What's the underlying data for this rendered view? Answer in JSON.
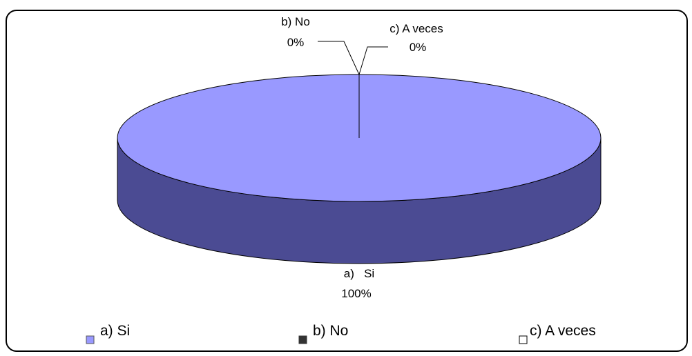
{
  "chart_data": {
    "type": "pie",
    "style": "3d",
    "categories": [
      "a) Si",
      "b) No",
      "c) A veces"
    ],
    "values": [
      100,
      0,
      0
    ],
    "data_labels": [
      {
        "category": "a)   Si",
        "value": "100%"
      },
      {
        "category": "b) No",
        "value": "0%"
      },
      {
        "category": "c) A veces",
        "value": "0%"
      }
    ],
    "colors": [
      "#9999ff",
      "#333399",
      "#ffffff"
    ],
    "side_color": "#4b4b93",
    "legend": {
      "placement": "bottom",
      "items": [
        {
          "label": "a) Si",
          "color": "#9999ff"
        },
        {
          "label": "b) No",
          "color": "#333333"
        },
        {
          "label": "c) A veces",
          "color": "#ffffff"
        }
      ]
    }
  }
}
